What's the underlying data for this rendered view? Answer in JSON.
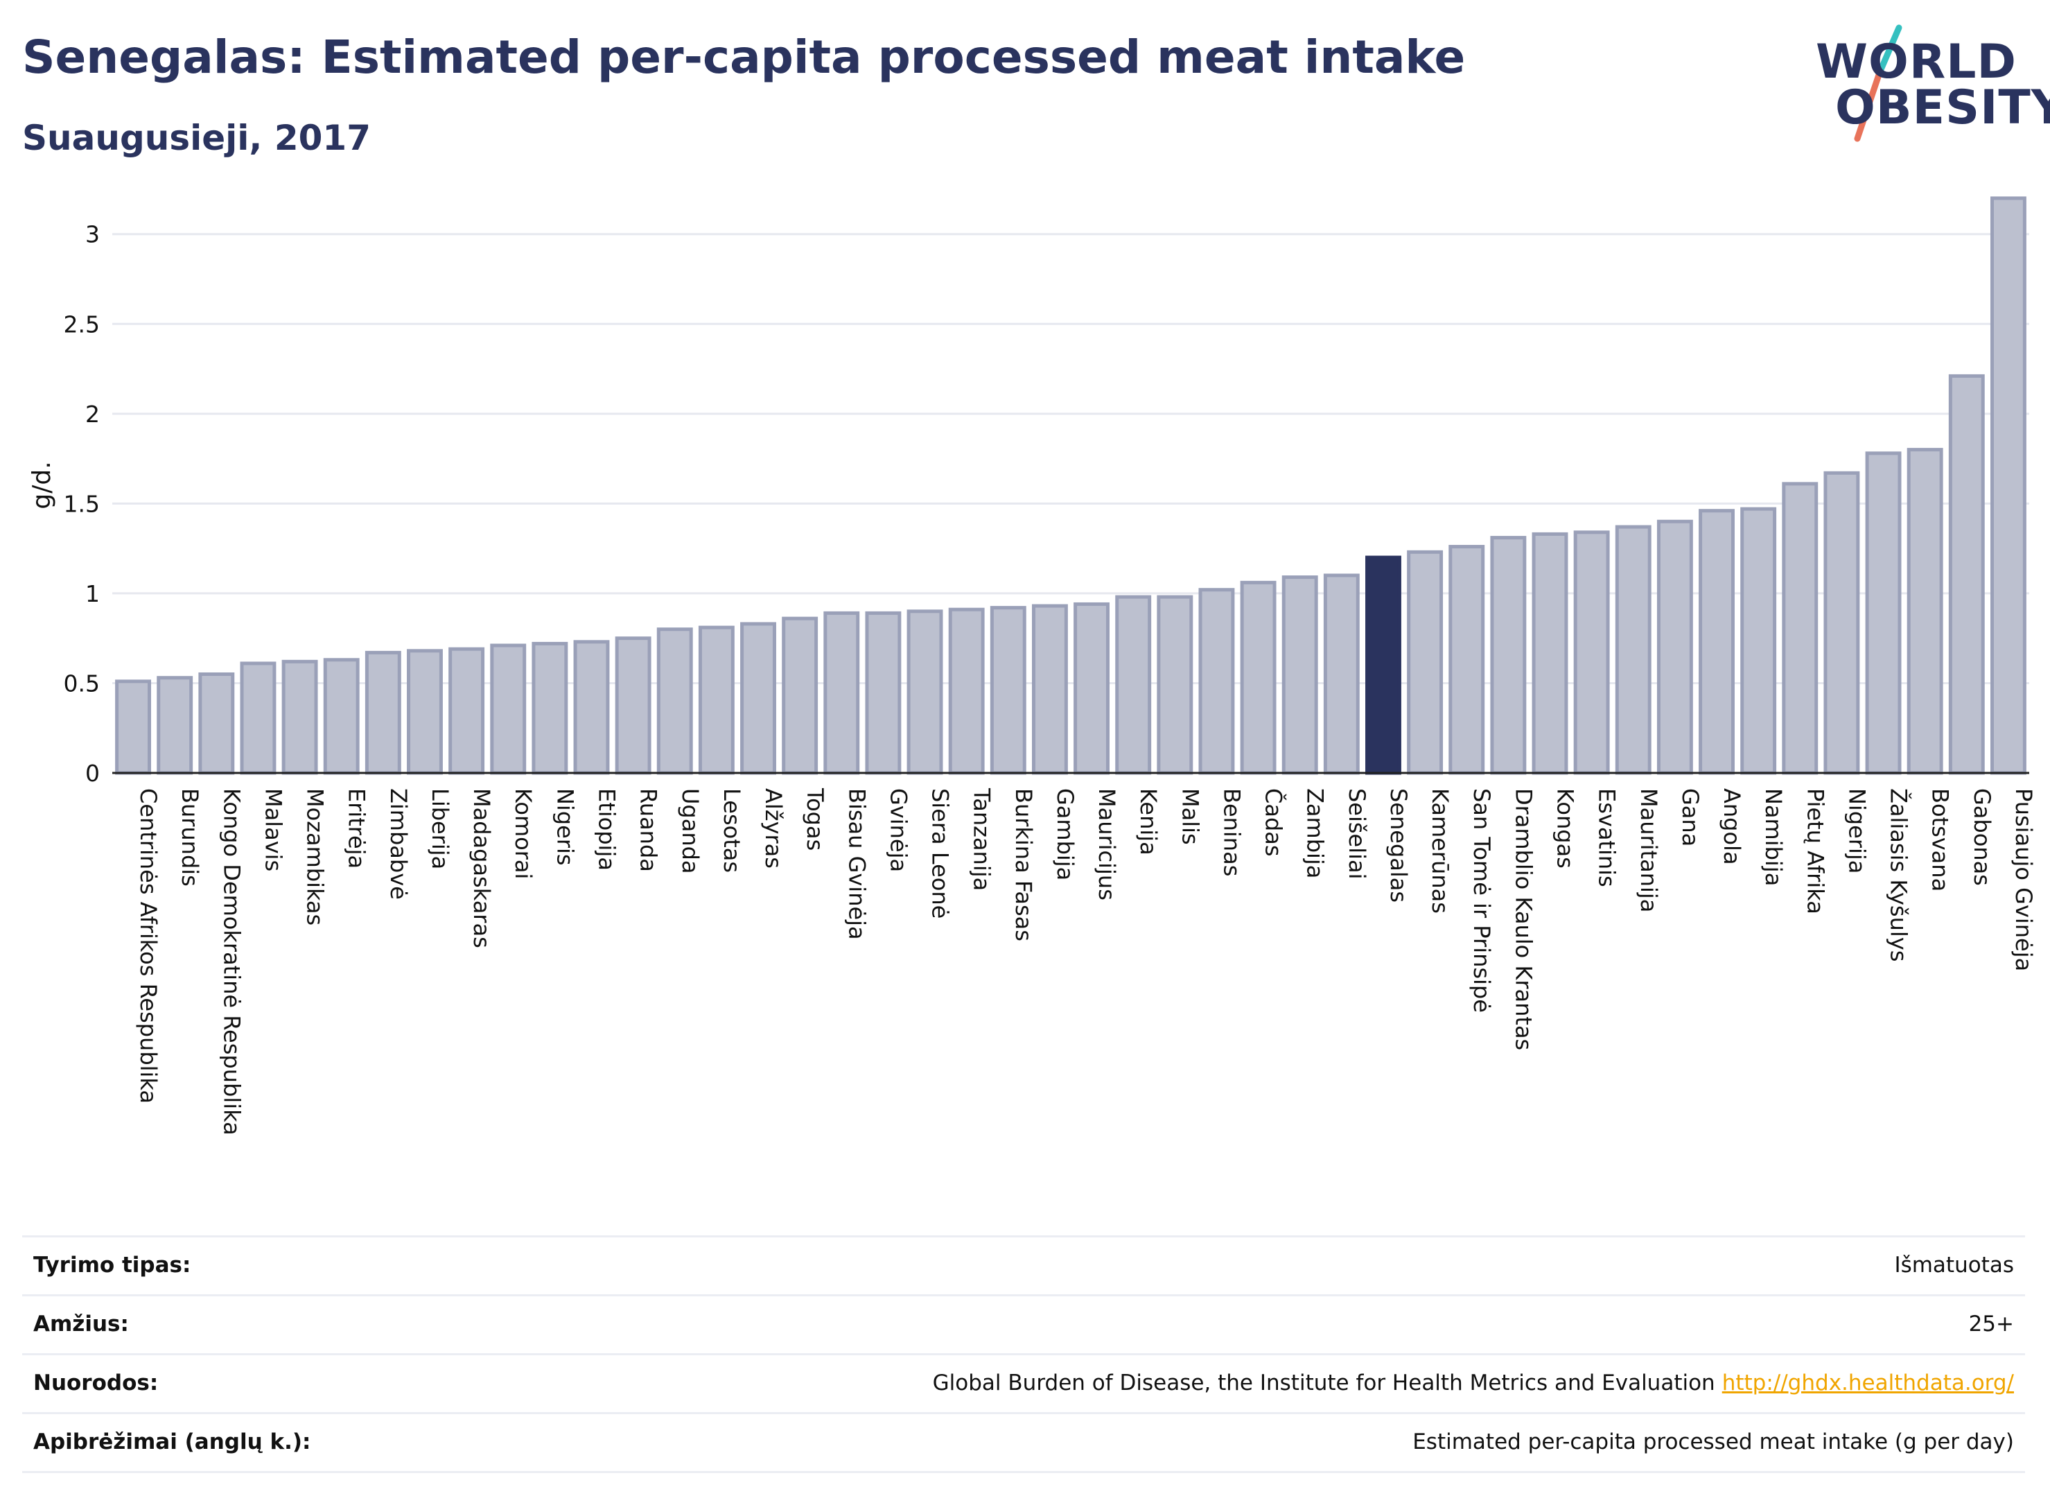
{
  "header": {
    "title": "Senegalas: Estimated per-capita processed meat intake",
    "subtitle": "Suaugusieji, 2017"
  },
  "logo": {
    "line1": "WORLD",
    "line2": "OBESITY"
  },
  "colors": {
    "bar": "#bcc0cf",
    "bar_stroke": "#9aa0b8",
    "highlight": "#2a335e",
    "grid": "#e6e8ef"
  },
  "chart_data": {
    "type": "bar",
    "ylabel": "g/d.",
    "ylim": [
      0,
      3.3
    ],
    "yticks": [
      0,
      0.5,
      1,
      1.5,
      2,
      2.5,
      3
    ],
    "ytick_labels": [
      "0",
      "0.5",
      "1",
      "1.5",
      "2",
      "2.5",
      "3"
    ],
    "grid": true,
    "highlight": "Senegalas",
    "categories": [
      "Centrinės Afrikos Respublika",
      "Burundis",
      "Kongo Demokratinė Respublika",
      "Malavis",
      "Mozambikas",
      "Eritrėja",
      "Zimbabvė",
      "Liberija",
      "Madagaskaras",
      "Komorai",
      "Nigeris",
      "Etiopija",
      "Ruanda",
      "Uganda",
      "Lesotas",
      "Alžyras",
      "Togas",
      "Bisau Gvinėja",
      "Gvinėja",
      "Siera Leonė",
      "Tanzanija",
      "Burkina Fasas",
      "Gambija",
      "Mauricijus",
      "Kenija",
      "Malis",
      "Beninas",
      "Čadas",
      "Zambija",
      "Seišeliai",
      "Senegalas",
      "Kamerūnas",
      "San Tomė ir Prinsipė",
      "Dramblio Kaulo Krantas",
      "Kongas",
      "Esvatinis",
      "Mauritanija",
      "Gana",
      "Angola",
      "Namibija",
      "Pietų Afrika",
      "Nigerija",
      "Žaliasis Kyšulys",
      "Botsvana",
      "Gabonas",
      "Pusiaujo Gvinėja"
    ],
    "values": [
      0.51,
      0.53,
      0.55,
      0.61,
      0.62,
      0.63,
      0.67,
      0.68,
      0.69,
      0.71,
      0.72,
      0.73,
      0.75,
      0.8,
      0.81,
      0.83,
      0.86,
      0.89,
      0.89,
      0.9,
      0.91,
      0.92,
      0.93,
      0.94,
      0.98,
      0.98,
      1.02,
      1.06,
      1.09,
      1.1,
      1.2,
      1.23,
      1.26,
      1.31,
      1.33,
      1.34,
      1.37,
      1.4,
      1.46,
      1.47,
      1.61,
      1.67,
      1.78,
      1.8,
      2.21,
      3.2
    ]
  },
  "info": [
    {
      "key": "Tyrimo tipas:",
      "value": "Išmatuotas",
      "link": ""
    },
    {
      "key": "Amžius:",
      "value": "25+",
      "link": ""
    },
    {
      "key": "Nuorodos:",
      "value": "Global Burden of Disease, the Institute for Health Metrics and Evaluation",
      "link": "http://ghdx.healthdata.org/"
    },
    {
      "key": "Apibrėžimai (anglų k.):",
      "value": "Estimated per-capita processed meat intake (g per day)",
      "link": ""
    }
  ]
}
